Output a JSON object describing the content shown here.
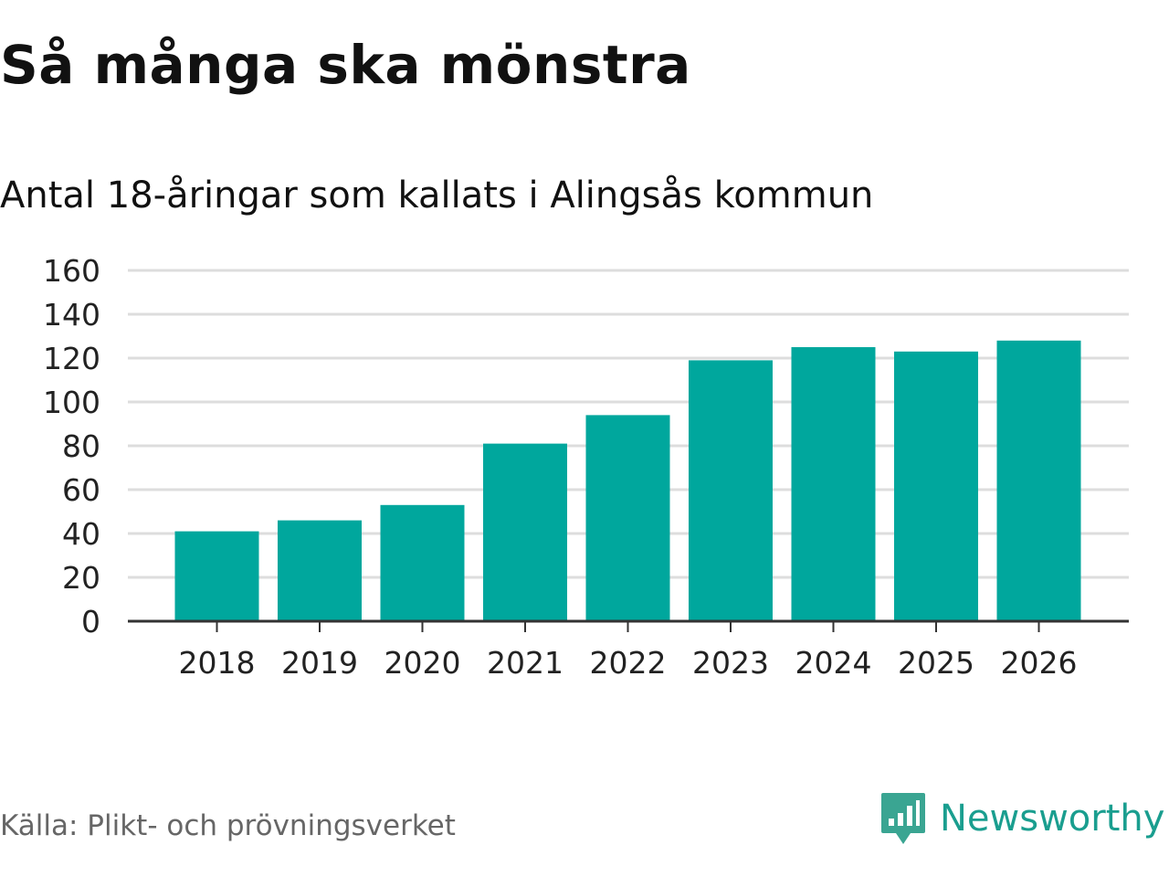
{
  "title": "Så många ska mönstra",
  "subtitle": "Antal 18-åringar som kallats i Alingsås kommun",
  "source": "Källa: Plikt- och prövningsverket",
  "brand": {
    "name": "Newsworthy",
    "icon": "newsworthy-logo-icon",
    "color": "#1a9e8f"
  },
  "colors": {
    "bar": "#00a79d",
    "grid": "#dddddd",
    "axis": "#333333"
  },
  "chart_data": {
    "type": "bar",
    "title": "Så många ska mönstra",
    "subtitle": "Antal 18-åringar som kallats i Alingsås kommun",
    "categories": [
      "2018",
      "2019",
      "2020",
      "2021",
      "2022",
      "2023",
      "2024",
      "2025",
      "2026"
    ],
    "values": [
      41,
      46,
      53,
      81,
      94,
      119,
      125,
      123,
      128
    ],
    "xlabel": "",
    "ylabel": "",
    "ylim": [
      0,
      160
    ],
    "yticks": [
      0,
      20,
      40,
      60,
      80,
      100,
      120,
      140,
      160
    ],
    "grid": true,
    "legend": "none"
  }
}
